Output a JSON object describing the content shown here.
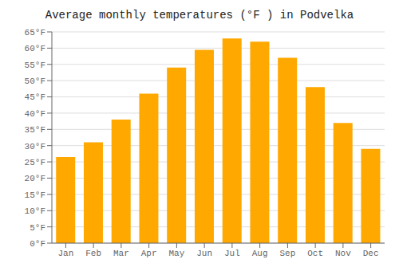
{
  "chart_data": {
    "type": "bar",
    "title": "Average monthly temperatures (°F ) in Podvelka",
    "categories": [
      "Jan",
      "Feb",
      "Mar",
      "Apr",
      "May",
      "Jun",
      "Jul",
      "Aug",
      "Sep",
      "Oct",
      "Nov",
      "Dec"
    ],
    "values": [
      26.5,
      31.0,
      38.0,
      46.0,
      54.0,
      59.5,
      63.0,
      62.0,
      57.0,
      48.0,
      37.0,
      29.0
    ],
    "color": "#FFA800",
    "ylim": [
      0,
      65
    ],
    "yticks": [
      {
        "value": 0,
        "label": "0°F"
      },
      {
        "value": 5,
        "label": "5°F"
      },
      {
        "value": 10,
        "label": "10°F"
      },
      {
        "value": 15,
        "label": "15°F"
      },
      {
        "value": 20,
        "label": "20°F"
      },
      {
        "value": 25,
        "label": "25°F"
      },
      {
        "value": 30,
        "label": "30°F"
      },
      {
        "value": 35,
        "label": "35°F"
      },
      {
        "value": 40,
        "label": "40°F"
      },
      {
        "value": 45,
        "label": "45°F"
      },
      {
        "value": 50,
        "label": "50°F"
      },
      {
        "value": 55,
        "label": "55°F"
      },
      {
        "value": 60,
        "label": "60°F"
      },
      {
        "value": 65,
        "label": "65°F"
      }
    ],
    "grid": true
  }
}
